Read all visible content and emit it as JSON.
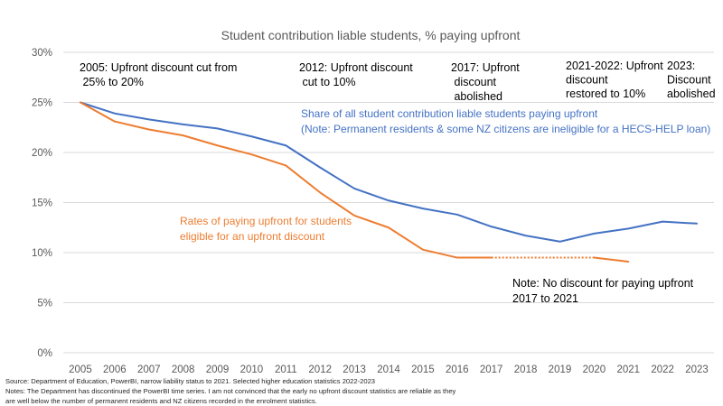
{
  "chart_data": {
    "type": "line",
    "title": "Student contribution liable students, % paying upfront",
    "xlabel": "",
    "ylabel": "",
    "ylim": [
      0,
      30
    ],
    "yticks": [
      "0%",
      "5%",
      "10%",
      "15%",
      "20%",
      "25%",
      "30%"
    ],
    "categories": [
      "2005",
      "2006",
      "2007",
      "2008",
      "2009",
      "2010",
      "2011",
      "2012",
      "2013",
      "2014",
      "2015",
      "2016",
      "2017",
      "2018",
      "2019",
      "2020",
      "2021",
      "2022",
      "2023"
    ],
    "series": [
      {
        "name": "Share of all student contribution liable students paying upfront",
        "color": "#4472c4",
        "values": [
          25.0,
          23.9,
          23.3,
          22.8,
          22.4,
          21.6,
          20.7,
          18.5,
          16.4,
          15.2,
          14.4,
          13.8,
          12.6,
          11.7,
          11.1,
          11.9,
          12.4,
          13.1,
          12.9
        ]
      },
      {
        "name": "Rates of paying upfront for students eligible for an upfront discount",
        "color": "#ed7d31",
        "values": [
          25.0,
          23.1,
          22.3,
          21.7,
          20.7,
          19.8,
          18.7,
          16.0,
          13.7,
          12.5,
          10.3,
          9.5,
          9.5,
          null,
          null,
          9.5,
          9.1,
          null,
          null
        ],
        "dotted_gap": {
          "from": "2017",
          "to": "2020",
          "value": 9.5
        }
      }
    ],
    "series_labels": [
      {
        "name": "share-all-label",
        "color": "#4472c4",
        "lines": [
          "Share of all student contribution liable students paying upfront",
          "(Note: Permanent residents & some NZ citizens are ineligible for a HECS-HELP loan)"
        ]
      },
      {
        "name": "discount-eligible-label",
        "color": "#ed7d31",
        "lines": [
          "Rates of paying upfront for students",
          "eligible for an upfront discount"
        ]
      }
    ],
    "annotations": [
      {
        "name": "annotation-2005",
        "lines": [
          "2005: Upfront discount cut from",
          " 25% to 20%"
        ]
      },
      {
        "name": "annotation-2012",
        "lines": [
          "2012: Upfront discount",
          " cut to 10%"
        ]
      },
      {
        "name": "annotation-2017",
        "lines": [
          "2017: Upfront",
          " discount",
          " abolished"
        ]
      },
      {
        "name": "annotation-2021-2022",
        "lines": [
          "2021-2022: Upfront",
          "discount",
          "restored to 10%"
        ]
      },
      {
        "name": "annotation-2023",
        "lines": [
          "2023:",
          "Discount",
          "abolished"
        ]
      },
      {
        "name": "annotation-no-discount",
        "lines": [
          "Note: No discount for paying upfront",
          "2017 to 2021"
        ]
      }
    ]
  },
  "footnotes": {
    "source": "Source: Department of Education, PowerBI, narrow liability status to 2021. Selected higher education statistics 2022-2023",
    "notes_line1": "Notes: The Department has discontinued the PowerBI time series. I am not convinced that the early no upfront discount statistics are reliable as they",
    "notes_line2": "are well below the number of permanent residents and NZ citizens recorded in the enrolment statistics."
  }
}
